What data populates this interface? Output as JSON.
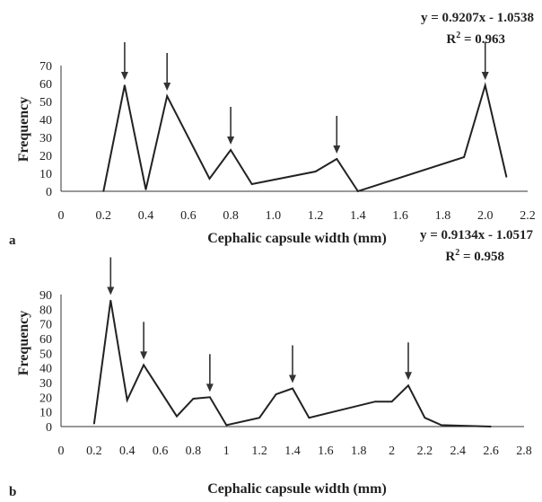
{
  "chart_data": [
    {
      "type": "line",
      "panel_label": "a",
      "ylabel": "Frequency",
      "xlabel": "Cephalic capsule width (mm)",
      "xlim": [
        0,
        2.2
      ],
      "ylim": [
        0,
        70
      ],
      "xticks": [
        "0",
        "0.2",
        "0.4",
        "0.6",
        "0.8",
        "1.0",
        "1.2",
        "1.4",
        "1.6",
        "1.8",
        "2.0",
        "2.2"
      ],
      "xtick_values": [
        0,
        0.2,
        0.4,
        0.6,
        0.8,
        1.0,
        1.2,
        1.4,
        1.6,
        1.8,
        2.0,
        2.2
      ],
      "yticks": [
        "0",
        "10",
        "20",
        "30",
        "40",
        "50",
        "60",
        "70"
      ],
      "ytick_values": [
        0,
        10,
        20,
        30,
        40,
        50,
        60,
        70
      ],
      "equation": "y = 0.9207x - 1.0538",
      "r2_prefix": "R",
      "r2_sup": "2",
      "r2_suffix": " = 0.963",
      "x": [
        0.2,
        0.3,
        0.4,
        0.5,
        0.7,
        0.8,
        0.9,
        1.2,
        1.3,
        1.4,
        1.9,
        2.0,
        2.1
      ],
      "y": [
        0,
        59,
        1,
        53,
        7,
        23,
        4,
        11,
        18,
        0,
        19,
        59,
        8
      ],
      "arrows_at": [
        0.3,
        0.5,
        0.8,
        1.3,
        2.0
      ]
    },
    {
      "type": "line",
      "panel_label": "b",
      "ylabel": "Frequency",
      "xlabel": "Cephalic capsule width (mm)",
      "xlim": [
        0,
        2.8
      ],
      "ylim": [
        0,
        90
      ],
      "xticks": [
        "0",
        "0.2",
        "0.4",
        "0.6",
        "0.8",
        "1",
        "1.2",
        "1.4",
        "1.6",
        "1.8",
        "2",
        "2.2",
        "2.4",
        "2.6",
        "2.8"
      ],
      "xtick_values": [
        0,
        0.2,
        0.4,
        0.6,
        0.8,
        1.0,
        1.2,
        1.4,
        1.6,
        1.8,
        2.0,
        2.2,
        2.4,
        2.6,
        2.8
      ],
      "yticks": [
        "0",
        "10",
        "20",
        "30",
        "40",
        "50",
        "60",
        "70",
        "80",
        "90"
      ],
      "ytick_values": [
        0,
        10,
        20,
        30,
        40,
        50,
        60,
        70,
        80,
        90
      ],
      "equation": "y = 0.9134x - 1.0517",
      "r2_prefix": "R",
      "r2_sup": "2",
      "r2_suffix": " = 0.958",
      "x": [
        0.2,
        0.3,
        0.4,
        0.5,
        0.7,
        0.8,
        0.9,
        1.0,
        1.2,
        1.3,
        1.4,
        1.5,
        1.9,
        2.0,
        2.1,
        2.2,
        2.3,
        2.6
      ],
      "y": [
        2,
        86,
        18,
        42,
        7,
        19,
        20,
        1,
        6,
        22,
        26,
        6,
        17,
        17,
        28,
        6,
        1,
        0
      ],
      "arrows_at": [
        0.3,
        0.5,
        0.9,
        1.4,
        2.1
      ]
    }
  ]
}
